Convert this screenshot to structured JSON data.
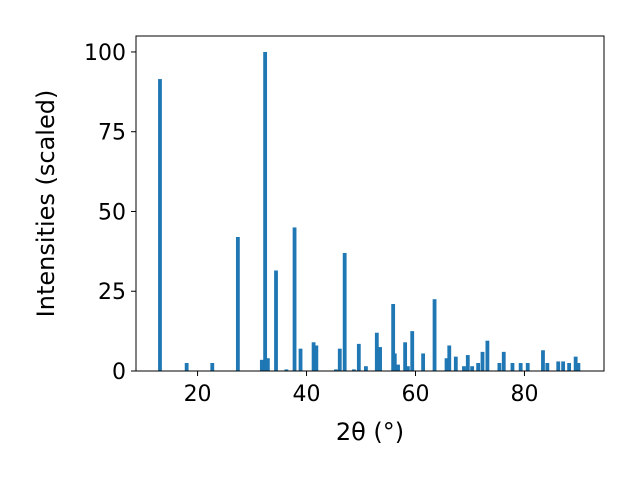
{
  "chart_data": {
    "type": "bar",
    "title": "",
    "xlabel": "2θ (°)",
    "ylabel": "Intensities (scaled)",
    "xlim": [
      8.7,
      94.6
    ],
    "ylim": [
      0,
      105
    ],
    "xticks": [
      20,
      40,
      60,
      80
    ],
    "yticks": [
      0,
      25,
      50,
      75,
      100
    ],
    "grid": false,
    "bar_color": "#1f77b4",
    "bar_width": 0.7,
    "series": [
      {
        "x": [
          13.1,
          18.0,
          22.7,
          27.4,
          31.8,
          32.4,
          32.9,
          34.4,
          36.3,
          37.8,
          38.9,
          41.3,
          41.8,
          45.4,
          46.1,
          47.0,
          48.7,
          49.6,
          50.9,
          52.9,
          53.5,
          55.9,
          56.2,
          56.8,
          58.1,
          58.6,
          59.4,
          61.4,
          63.5,
          65.7,
          66.2,
          67.4,
          68.9,
          69.6,
          70.4,
          71.5,
          72.3,
          73.2,
          75.4,
          76.2,
          77.8,
          79.3,
          80.6,
          83.4,
          84.2,
          86.2,
          87.1,
          88.2,
          89.4,
          89.9
        ],
        "values": [
          91.5,
          2.5,
          2.5,
          42.0,
          3.5,
          100.0,
          4.0,
          31.5,
          0.5,
          45.0,
          7.0,
          9.0,
          8.0,
          0.5,
          7.0,
          37.0,
          0.5,
          8.5,
          1.5,
          12.0,
          7.5,
          21.0,
          5.5,
          2.0,
          9.0,
          1.5,
          12.5,
          5.5,
          22.5,
          4.0,
          8.0,
          4.5,
          1.5,
          5.0,
          1.5,
          2.5,
          6.0,
          9.5,
          2.5,
          6.0,
          2.5,
          2.5,
          2.5,
          6.5,
          2.5,
          3.0,
          3.0,
          2.5,
          4.5,
          2.5
        ]
      }
    ]
  }
}
